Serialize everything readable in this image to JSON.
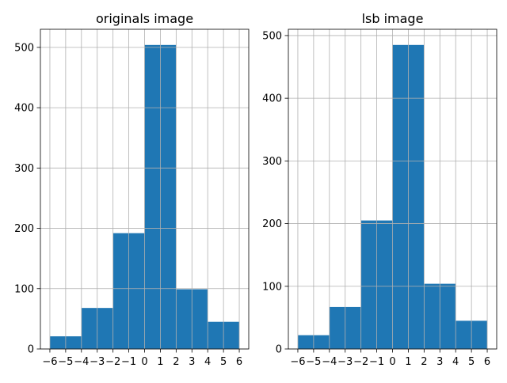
{
  "chart_data": [
    {
      "type": "bar",
      "title": "originals image",
      "bins": [
        {
          "x0": -6,
          "x1": -4,
          "value": 21
        },
        {
          "x0": -4,
          "x1": -2,
          "value": 68
        },
        {
          "x0": -2,
          "x1": 0,
          "value": 192
        },
        {
          "x0": 0,
          "x1": 2,
          "value": 504
        },
        {
          "x0": 2,
          "x1": 4,
          "value": 99
        },
        {
          "x0": 4,
          "x1": 6,
          "value": 45
        }
      ],
      "xticks": [
        -6,
        -5,
        -4,
        -3,
        -2,
        -1,
        0,
        1,
        2,
        3,
        4,
        5,
        6
      ],
      "xtick_labels": [
        "−6",
        "−5",
        "−4",
        "−3",
        "−2",
        "−1",
        "0",
        "1",
        "2",
        "3",
        "4",
        "5",
        "6"
      ],
      "yticks": [
        0,
        100,
        200,
        300,
        400,
        500
      ],
      "ytick_labels": [
        "0",
        "100",
        "200",
        "300",
        "400",
        "500"
      ],
      "xlim": [
        -6.6,
        6.6
      ],
      "ylim": [
        0,
        530
      ],
      "grid": true,
      "bar_color": "#1f77b4"
    },
    {
      "type": "bar",
      "title": "lsb image",
      "bins": [
        {
          "x0": -6,
          "x1": -4,
          "value": 22
        },
        {
          "x0": -4,
          "x1": -2,
          "value": 67
        },
        {
          "x0": -2,
          "x1": 0,
          "value": 205
        },
        {
          "x0": 0,
          "x1": 2,
          "value": 485
        },
        {
          "x0": 2,
          "x1": 4,
          "value": 104
        },
        {
          "x0": 4,
          "x1": 6,
          "value": 45
        }
      ],
      "xticks": [
        -6,
        -5,
        -4,
        -3,
        -2,
        -1,
        0,
        1,
        2,
        3,
        4,
        5,
        6
      ],
      "xtick_labels": [
        "−6",
        "−5",
        "−4",
        "−3",
        "−2",
        "−1",
        "0",
        "1",
        "2",
        "3",
        "4",
        "5",
        "6"
      ],
      "yticks": [
        0,
        100,
        200,
        300,
        400,
        500
      ],
      "ytick_labels": [
        "0",
        "100",
        "200",
        "300",
        "400",
        "500"
      ],
      "xlim": [
        -6.6,
        6.6
      ],
      "ylim": [
        0,
        510
      ],
      "grid": true,
      "bar_color": "#1f77b4"
    }
  ]
}
